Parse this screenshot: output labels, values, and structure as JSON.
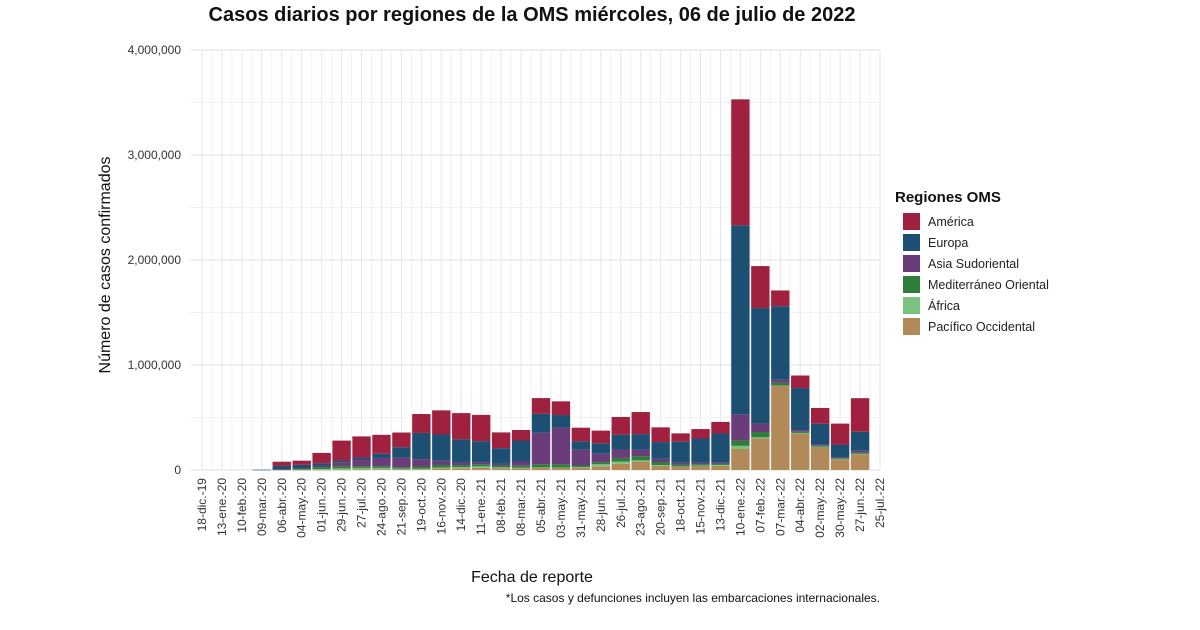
{
  "chart_data": {
    "type": "bar",
    "stacked": true,
    "title": "Casos diarios por regiones de la OMS miércoles, 06 de julio de 2022",
    "xlabel": "Fecha de reporte",
    "ylabel": "Número de casos confirmados",
    "ylim": [
      0,
      4000000
    ],
    "yticks": [
      "0",
      "1,000,000",
      "2,000,000",
      "3,000,000",
      "4,000,000"
    ],
    "xticks": [
      "18-dic.-19",
      "13-ene.-20",
      "10-feb.-20",
      "09-mar.-20",
      "06-abr.-20",
      "04-may.-20",
      "01-jun.-20",
      "29-jun.-20",
      "27-jul.-20",
      "24-ago.-20",
      "21-sep.-20",
      "19-oct.-20",
      "16-nov.-20",
      "14-dic.-20",
      "11-ene.-21",
      "08-feb.-21",
      "08-mar.-21",
      "05-abr.-21",
      "03-may.-21",
      "31-may.-21",
      "28-jun.-21",
      "26-jul.-21",
      "23-ago.-21",
      "20-sep.-21",
      "18-oct.-21",
      "15-nov.-21",
      "13-dic.-21",
      "10-ene.-22",
      "07-feb.-22",
      "07-mar.-22",
      "04-abr.-22",
      "02-may.-22",
      "30-may.-22",
      "27-jun.-22",
      "25-jul.-22"
    ],
    "grid": true,
    "legend_title": "Regiones OMS",
    "legend_position": "right",
    "note": "*Los casos y defunciones incluyen las embarcaciones internacionales.",
    "series_order_bottom_to_top": [
      "Pacífico Occidental",
      "África",
      "Mediterráneo Oriental",
      "Asia Sudoriental",
      "Europa",
      "América"
    ],
    "legend_order": [
      "América",
      "Europa",
      "Asia Sudoriental",
      "Mediterráneo Oriental",
      "África",
      "Pacífico Occidental"
    ],
    "series": [
      {
        "name": "América",
        "color": "#A0213F",
        "values": [
          0,
          0,
          0,
          0,
          40000,
          40000,
          100000,
          190000,
          200000,
          180000,
          140000,
          180000,
          230000,
          250000,
          250000,
          150000,
          100000,
          150000,
          130000,
          130000,
          120000,
          170000,
          210000,
          140000,
          80000,
          90000,
          110000,
          1200000,
          400000,
          150000,
          120000,
          150000,
          200000,
          320000,
          0
        ]
      },
      {
        "name": "Europa",
        "color": "#1D4F73",
        "values": [
          0,
          0,
          0,
          3000,
          30000,
          30000,
          20000,
          15000,
          20000,
          40000,
          100000,
          250000,
          250000,
          220000,
          200000,
          150000,
          200000,
          180000,
          120000,
          80000,
          100000,
          140000,
          150000,
          160000,
          200000,
          230000,
          280000,
          1800000,
          1100000,
          700000,
          400000,
          200000,
          120000,
          180000,
          0
        ]
      },
      {
        "name": "Asia Sudoriental",
        "color": "#6A3D7A",
        "values": [
          0,
          0,
          0,
          0,
          1000,
          5000,
          15000,
          40000,
          65000,
          80000,
          90000,
          70000,
          40000,
          25000,
          20000,
          15000,
          40000,
          300000,
          350000,
          150000,
          80000,
          80000,
          60000,
          30000,
          20000,
          15000,
          10000,
          250000,
          80000,
          30000,
          15000,
          10000,
          10000,
          20000,
          0
        ]
      },
      {
        "name": "Mediterráneo Oriental",
        "color": "#2E7D3A",
        "values": [
          0,
          0,
          0,
          0,
          5000,
          10000,
          20000,
          20000,
          15000,
          15000,
          15000,
          20000,
          25000,
          20000,
          20000,
          18000,
          20000,
          30000,
          30000,
          15000,
          20000,
          35000,
          40000,
          30000,
          15000,
          12000,
          10000,
          50000,
          50000,
          25000,
          12000,
          8000,
          8000,
          10000,
          0
        ]
      },
      {
        "name": "África",
        "color": "#7CC27E",
        "values": [
          0,
          0,
          0,
          0,
          1000,
          2000,
          6000,
          12000,
          15000,
          12000,
          7000,
          5000,
          8000,
          12000,
          15000,
          10000,
          6000,
          5000,
          4000,
          8000,
          20000,
          20000,
          12000,
          6000,
          4000,
          3000,
          8000,
          30000,
          12000,
          5000,
          3000,
          3000,
          4000,
          4000,
          0
        ]
      },
      {
        "name": "Pacífico Occidental",
        "color": "#B28A5A",
        "values": [
          0,
          0,
          0,
          0,
          2000,
          2000,
          2000,
          3000,
          5000,
          8000,
          5000,
          8000,
          15000,
          15000,
          20000,
          15000,
          15000,
          20000,
          20000,
          20000,
          35000,
          60000,
          80000,
          40000,
          30000,
          40000,
          40000,
          200000,
          300000,
          800000,
          350000,
          220000,
          100000,
          150000,
          0
        ]
      }
    ]
  }
}
